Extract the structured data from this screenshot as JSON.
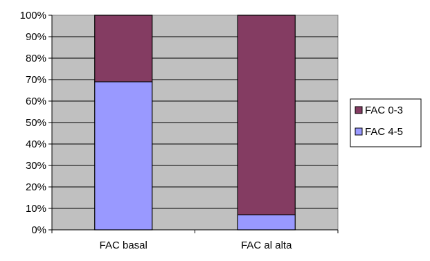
{
  "chart_data": {
    "type": "bar",
    "stacked": true,
    "percent": true,
    "categories": [
      "FAC basal",
      "FAC al alta"
    ],
    "series": [
      {
        "name": "FAC 4-5",
        "values": [
          69,
          7
        ],
        "color": "#9999ff"
      },
      {
        "name": "FAC 0-3",
        "values": [
          31,
          93
        ],
        "color": "#843c62"
      }
    ],
    "legend_order": [
      "FAC 0-3",
      "FAC 4-5"
    ],
    "y_ticks": [
      "0%",
      "10%",
      "20%",
      "30%",
      "40%",
      "50%",
      "60%",
      "70%",
      "80%",
      "90%",
      "100%"
    ],
    "ylim": [
      0,
      100
    ],
    "grid": true,
    "legend_position": "right",
    "plot_background": "#c0c0c0"
  }
}
